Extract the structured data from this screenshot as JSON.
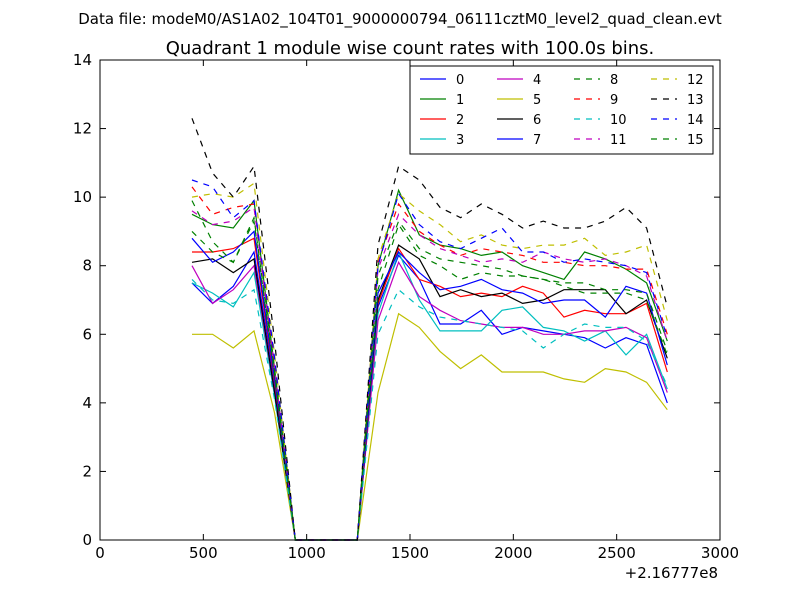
{
  "suptitle": "Data file: modeM0/AS1A02_104T01_9000000794_06111cztM0_level2_quad_clean.evt",
  "chart_data": {
    "type": "line",
    "title": "Quadrant 1 module wise count rates with 100.0s bins.",
    "xlabel": "",
    "ylabel": "",
    "x_offset_label": "+2.16777e8",
    "xlim": [
      0,
      3000
    ],
    "ylim": [
      0,
      14
    ],
    "x_ticks": [
      0,
      500,
      1000,
      1500,
      2000,
      2500,
      3000
    ],
    "y_ticks": [
      0,
      2,
      4,
      6,
      8,
      10,
      12,
      14
    ],
    "x_tick_labels": [
      "0",
      "500",
      "1000",
      "1500",
      "2000",
      "2500",
      "3000"
    ],
    "y_tick_labels": [
      "0",
      "2",
      "4",
      "6",
      "8",
      "10",
      "12",
      "14"
    ],
    "grid": false,
    "legend_position": "top-right",
    "legend_columns": 4,
    "x": [
      445,
      545,
      645,
      745,
      845,
      945,
      1045,
      1145,
      1245,
      1345,
      1445,
      1545,
      1645,
      1745,
      1845,
      1945,
      2045,
      2145,
      2245,
      2345,
      2445,
      2545,
      2645,
      2745
    ],
    "series": [
      {
        "name": "0",
        "color": "#0000ff",
        "dash": "solid",
        "values": [
          7.5,
          6.9,
          7.4,
          8.4,
          4.5,
          0,
          0,
          0,
          0,
          6.8,
          8.3,
          7.6,
          6.3,
          6.3,
          6.7,
          6.0,
          6.2,
          6.1,
          6.0,
          5.9,
          5.6,
          5.9,
          5.7,
          4.0
        ]
      },
      {
        "name": "1",
        "color": "#008000",
        "dash": "solid",
        "values": [
          9.5,
          9.2,
          9.1,
          9.9,
          5.0,
          0,
          0,
          0,
          0,
          8.0,
          10.2,
          8.9,
          8.6,
          8.5,
          8.3,
          8.4,
          8.0,
          7.8,
          7.6,
          8.4,
          8.2,
          7.9,
          7.5,
          5.8
        ]
      },
      {
        "name": "2",
        "color": "#ff0000",
        "dash": "solid",
        "values": [
          8.4,
          8.4,
          8.5,
          8.8,
          4.6,
          0,
          0,
          0,
          0,
          6.9,
          8.5,
          7.6,
          7.4,
          7.1,
          7.2,
          7.1,
          7.4,
          7.2,
          6.5,
          6.7,
          6.6,
          6.6,
          6.9,
          4.9
        ]
      },
      {
        "name": "3",
        "color": "#00bfbf",
        "dash": "solid",
        "values": [
          7.5,
          7.2,
          6.8,
          7.8,
          4.2,
          0,
          0,
          0,
          0,
          6.6,
          8.4,
          7.0,
          6.1,
          6.1,
          6.1,
          6.7,
          6.8,
          6.2,
          6.1,
          5.8,
          6.1,
          5.4,
          6.0,
          4.4
        ]
      },
      {
        "name": "4",
        "color": "#bf00bf",
        "dash": "solid",
        "values": [
          8.0,
          6.9,
          7.3,
          8.0,
          4.3,
          0,
          0,
          0,
          0,
          6.4,
          8.1,
          7.1,
          6.7,
          6.4,
          6.3,
          6.2,
          6.2,
          6.0,
          6.0,
          6.1,
          6.1,
          6.2,
          5.9,
          4.3
        ]
      },
      {
        "name": "5",
        "color": "#bfbf00",
        "dash": "solid",
        "values": [
          6.0,
          6.0,
          5.6,
          6.1,
          3.7,
          0,
          0,
          0,
          0,
          4.3,
          6.6,
          6.2,
          5.5,
          5.0,
          5.4,
          4.9,
          4.9,
          4.9,
          4.7,
          4.6,
          5.0,
          4.9,
          4.6,
          3.8
        ]
      },
      {
        "name": "6",
        "color": "#000000",
        "dash": "solid",
        "values": [
          8.1,
          8.2,
          7.8,
          8.2,
          4.3,
          0,
          0,
          0,
          0,
          7.0,
          8.6,
          8.2,
          7.1,
          7.3,
          7.1,
          7.2,
          6.9,
          7.0,
          7.3,
          7.3,
          7.3,
          6.6,
          7.0,
          5.3
        ]
      },
      {
        "name": "7",
        "color": "#0000ff",
        "dash": "solid",
        "values": [
          8.8,
          8.1,
          8.4,
          9.0,
          4.7,
          0,
          0,
          0,
          0,
          7.2,
          8.4,
          7.8,
          7.3,
          7.4,
          7.6,
          7.3,
          7.2,
          6.9,
          7.0,
          7.0,
          6.5,
          7.4,
          7.2,
          5.1
        ]
      },
      {
        "name": "8",
        "color": "#008000",
        "dash": "dashed",
        "values": [
          9.0,
          8.4,
          8.1,
          9.3,
          4.8,
          0,
          0,
          0,
          0,
          7.3,
          9.2,
          8.3,
          8.0,
          7.6,
          7.8,
          7.7,
          7.7,
          7.6,
          7.4,
          7.2,
          7.2,
          7.2,
          7.0,
          5.4
        ]
      },
      {
        "name": "9",
        "color": "#ff0000",
        "dash": "dashed",
        "values": [
          10.3,
          9.5,
          9.7,
          9.8,
          5.2,
          0,
          0,
          0,
          0,
          8.1,
          9.8,
          9.0,
          8.6,
          8.3,
          8.5,
          8.4,
          8.3,
          8.1,
          8.1,
          8.0,
          8.0,
          7.9,
          7.9,
          6.0
        ]
      },
      {
        "name": "10",
        "color": "#00bfbf",
        "dash": "dashed",
        "values": [
          7.6,
          7.0,
          6.9,
          7.3,
          4.1,
          0,
          0,
          0,
          0,
          6.0,
          7.3,
          6.8,
          6.5,
          6.4,
          6.3,
          6.2,
          6.1,
          5.6,
          6.0,
          6.3,
          6.2,
          6.2,
          5.8,
          4.5
        ]
      },
      {
        "name": "11",
        "color": "#bf00bf",
        "dash": "dashed",
        "values": [
          9.6,
          9.2,
          9.3,
          9.7,
          5.0,
          0,
          0,
          0,
          0,
          7.9,
          9.5,
          8.9,
          8.5,
          8.3,
          8.1,
          8.2,
          8.1,
          8.4,
          8.2,
          8.1,
          8.2,
          8.0,
          7.7,
          5.8
        ]
      },
      {
        "name": "12",
        "color": "#bfbf00",
        "dash": "dashed",
        "values": [
          10.0,
          10.1,
          10.0,
          10.4,
          5.4,
          0,
          0,
          0,
          0,
          8.2,
          10.1,
          9.6,
          9.2,
          8.7,
          8.9,
          8.6,
          8.5,
          8.6,
          8.6,
          8.8,
          8.3,
          8.4,
          8.6,
          6.4
        ]
      },
      {
        "name": "13",
        "color": "#000000",
        "dash": "dashed",
        "values": [
          12.3,
          10.7,
          10.0,
          10.9,
          5.8,
          0,
          0,
          0,
          0,
          8.6,
          10.9,
          10.5,
          9.7,
          9.4,
          9.8,
          9.5,
          9.1,
          9.3,
          9.1,
          9.1,
          9.3,
          9.7,
          9.1,
          6.8
        ]
      },
      {
        "name": "14",
        "color": "#0000ff",
        "dash": "dashed",
        "values": [
          10.5,
          10.3,
          9.4,
          9.9,
          5.3,
          0,
          0,
          0,
          0,
          8.0,
          10.1,
          9.2,
          8.7,
          8.5,
          8.8,
          9.1,
          8.4,
          8.4,
          8.1,
          8.2,
          8.1,
          8.0,
          7.8,
          5.9
        ]
      },
      {
        "name": "15",
        "color": "#008000",
        "dash": "dashed",
        "values": [
          9.9,
          8.7,
          8.1,
          9.4,
          4.9,
          0,
          0,
          0,
          0,
          7.7,
          9.3,
          8.5,
          8.2,
          8.1,
          8.0,
          7.9,
          7.7,
          7.6,
          7.5,
          7.5,
          7.3,
          7.3,
          7.2,
          5.5
        ]
      }
    ]
  }
}
